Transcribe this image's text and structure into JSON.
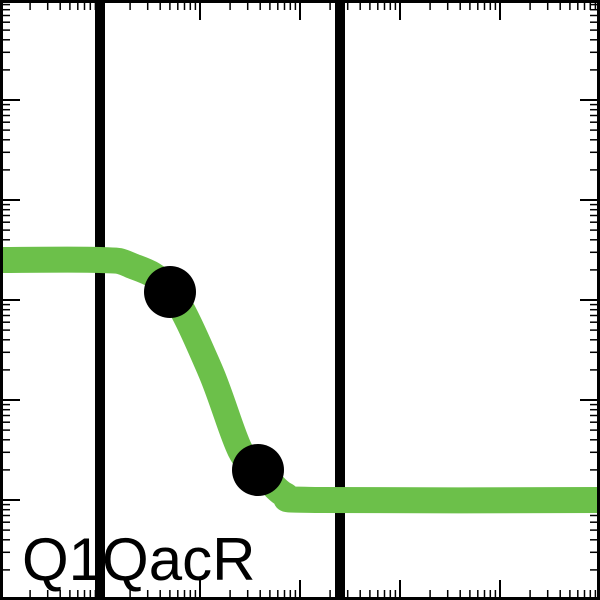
{
  "chart_data": {
    "type": "line",
    "label": "Q1QacR",
    "xlim": [
      0,
      6
    ],
    "ylim": [
      0,
      6
    ],
    "grid": false,
    "vertical_lines": [
      1,
      3.4
    ],
    "series": [
      {
        "x": [
          0,
          1.0,
          1.3,
          1.7,
          2.1,
          2.4,
          2.6,
          2.85,
          3.2,
          6
        ],
        "y": [
          3.4,
          3.4,
          3.35,
          3.1,
          2.3,
          1.5,
          1.3,
          1.05,
          1.0,
          1.0
        ]
      }
    ],
    "markers": {
      "x": [
        1.7,
        2.58
      ],
      "y": [
        3.08,
        1.3
      ]
    },
    "colors": {
      "series": "#6cc04a",
      "markers": "#000000",
      "axes": "#000000",
      "vertical_lines": "#000000"
    }
  }
}
